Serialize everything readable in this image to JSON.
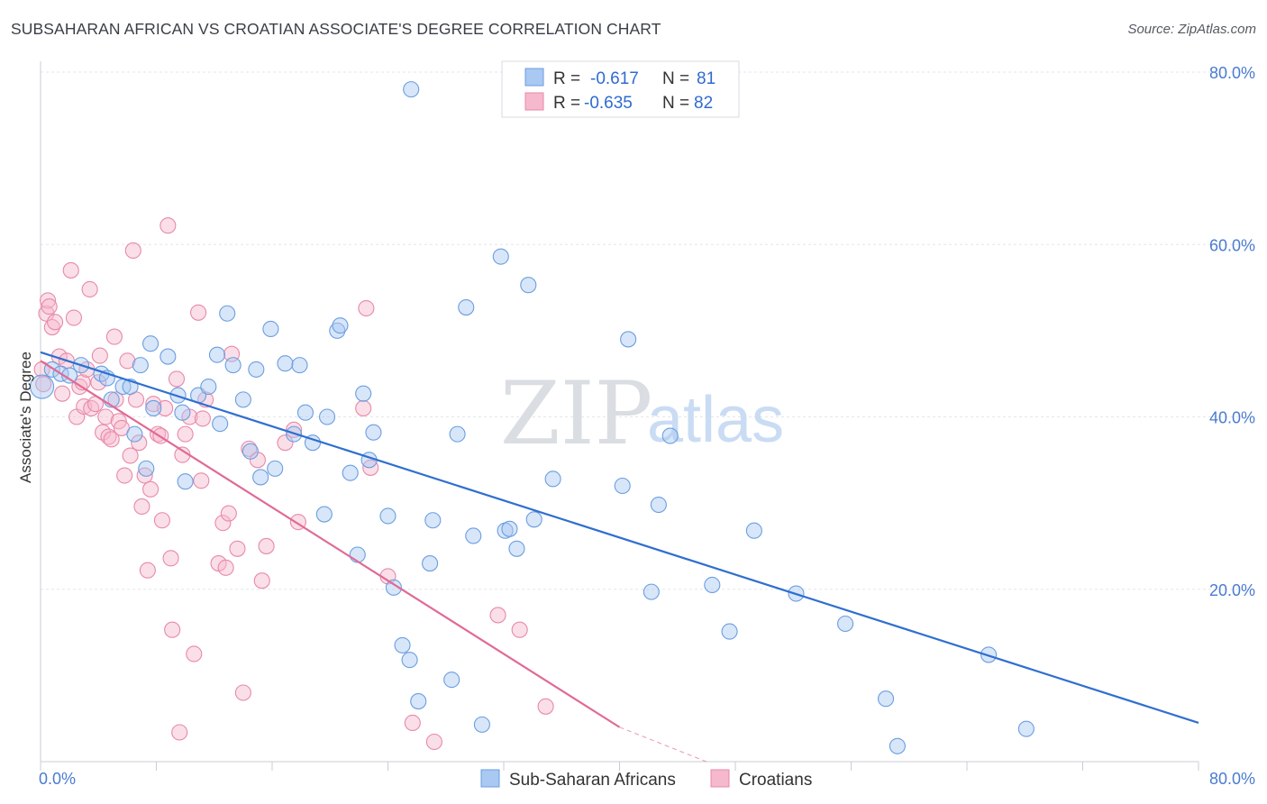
{
  "title": "SUBSAHARAN AFRICAN VS CROATIAN ASSOCIATE'S DEGREE CORRELATION CHART",
  "source": "Source: ZipAtlas.com",
  "watermark": {
    "zip": "ZIP",
    "atlas": "atlas"
  },
  "colors": {
    "blue_fill": "#a9c8f2",
    "blue_stroke": "#6a9ee0",
    "blue_line": "#2f6fcf",
    "pink_fill": "#f6b8cc",
    "pink_stroke": "#e889a8",
    "pink_line": "#e06a96",
    "tick_text": "#4a7bd0",
    "grid": "#e3e6ea"
  },
  "legend": {
    "rows": [
      {
        "r_label": "R =",
        "r_value": "-0.617",
        "n_label": "N =",
        "n_value": "81"
      },
      {
        "r_label": "R =",
        "r_value": "-0.635",
        "n_label": "N =",
        "n_value": "82"
      }
    ]
  },
  "bottom_legend": [
    "Sub-Saharan Africans",
    "Croatians"
  ],
  "chart_data": {
    "type": "scatter",
    "xlabel": "",
    "ylabel": "Associate's Degree",
    "xlim": [
      0,
      80
    ],
    "ylim": [
      0,
      80
    ],
    "x_tick_labels": [
      "0.0%",
      "80.0%"
    ],
    "y_tick_labels": [
      "20.0%",
      "40.0%",
      "60.0%",
      "80.0%"
    ],
    "y_ticks": [
      20,
      40,
      60,
      80
    ],
    "grid": true,
    "series": [
      {
        "name": "Sub-Saharan Africans",
        "r": -0.617,
        "n": 81,
        "trend": [
          [
            0,
            47.5
          ],
          [
            80,
            4.5
          ]
        ],
        "points": [
          [
            0.1,
            43.5
          ],
          [
            0.8,
            45.5
          ],
          [
            1.4,
            45
          ],
          [
            2.0,
            44.8
          ],
          [
            2.8,
            46
          ],
          [
            4.2,
            45
          ],
          [
            4.6,
            44.5
          ],
          [
            4.9,
            42
          ],
          [
            5.7,
            43.5
          ],
          [
            6.2,
            43.5
          ],
          [
            6.5,
            38
          ],
          [
            6.9,
            46
          ],
          [
            7.3,
            34
          ],
          [
            7.6,
            48.5
          ],
          [
            7.8,
            41
          ],
          [
            8.8,
            47
          ],
          [
            9.5,
            42.5
          ],
          [
            9.8,
            40.5
          ],
          [
            10,
            32.5
          ],
          [
            10.9,
            42.5
          ],
          [
            11.6,
            43.5
          ],
          [
            12.2,
            47.2
          ],
          [
            12.4,
            39.2
          ],
          [
            12.9,
            52
          ],
          [
            13.3,
            46
          ],
          [
            14,
            42
          ],
          [
            14.5,
            36
          ],
          [
            14.9,
            45.5
          ],
          [
            15.2,
            33
          ],
          [
            16.2,
            34
          ],
          [
            15.9,
            50.2
          ],
          [
            16.9,
            46.2
          ],
          [
            17.5,
            38
          ],
          [
            17.9,
            46
          ],
          [
            18.3,
            40.5
          ],
          [
            18.8,
            37
          ],
          [
            19.6,
            28.7
          ],
          [
            19.8,
            40
          ],
          [
            20.5,
            50
          ],
          [
            20.7,
            50.6
          ],
          [
            21.4,
            33.5
          ],
          [
            21.9,
            24
          ],
          [
            22.3,
            42.7
          ],
          [
            22.7,
            35
          ],
          [
            23,
            38.2
          ],
          [
            24,
            28.5
          ],
          [
            24.4,
            20.2
          ],
          [
            25,
            13.5
          ],
          [
            25.5,
            11.8
          ],
          [
            25.6,
            78
          ],
          [
            26.1,
            7
          ],
          [
            26.9,
            23
          ],
          [
            27.1,
            28
          ],
          [
            28.4,
            9.5
          ],
          [
            28.8,
            38
          ],
          [
            29.4,
            52.7
          ],
          [
            29.9,
            26.2
          ],
          [
            30.5,
            4.3
          ],
          [
            31.8,
            58.6
          ],
          [
            32.1,
            26.8
          ],
          [
            32.4,
            27
          ],
          [
            32.9,
            24.7
          ],
          [
            33.7,
            55.3
          ],
          [
            34.1,
            28.1
          ],
          [
            35.4,
            32.8
          ],
          [
            40.2,
            32
          ],
          [
            40.6,
            49
          ],
          [
            42.2,
            19.7
          ],
          [
            42.7,
            29.8
          ],
          [
            43.5,
            37.8
          ],
          [
            46.4,
            20.5
          ],
          [
            47.6,
            15.1
          ],
          [
            49.3,
            26.8
          ],
          [
            52.2,
            19.5
          ],
          [
            55.6,
            16
          ],
          [
            58.4,
            7.3
          ],
          [
            59.2,
            1.8
          ],
          [
            65.5,
            12.4
          ],
          [
            68.1,
            3.8
          ]
        ]
      },
      {
        "name": "Croatians",
        "r": -0.635,
        "n": 82,
        "trend": [
          [
            0,
            46.5
          ],
          [
            40,
            4
          ]
        ],
        "trend_dashed": [
          [
            40,
            4
          ],
          [
            46,
            -2.5
          ]
        ],
        "points": [
          [
            0.1,
            45.5
          ],
          [
            0.2,
            43.8
          ],
          [
            0.4,
            52
          ],
          [
            0.5,
            53.5
          ],
          [
            0.6,
            52.8
          ],
          [
            0.8,
            50.4
          ],
          [
            1.0,
            51
          ],
          [
            1.3,
            47
          ],
          [
            1.5,
            42.7
          ],
          [
            1.8,
            46.5
          ],
          [
            2.1,
            57
          ],
          [
            2.3,
            51.5
          ],
          [
            2.5,
            40
          ],
          [
            2.7,
            43.5
          ],
          [
            2.9,
            44
          ],
          [
            3.0,
            41.2
          ],
          [
            3.2,
            45.5
          ],
          [
            3.5,
            41
          ],
          [
            3.8,
            41.5
          ],
          [
            3.4,
            54.8
          ],
          [
            4,
            44
          ],
          [
            4.1,
            47.1
          ],
          [
            4.3,
            38.2
          ],
          [
            4.5,
            40
          ],
          [
            4.7,
            37.7
          ],
          [
            4.9,
            37.4
          ],
          [
            5.1,
            49.3
          ],
          [
            5.2,
            42
          ],
          [
            5.4,
            39.5
          ],
          [
            5.6,
            38.7
          ],
          [
            5.8,
            33.2
          ],
          [
            6.0,
            46.5
          ],
          [
            6.2,
            35.5
          ],
          [
            6.4,
            59.3
          ],
          [
            6.6,
            42
          ],
          [
            6.8,
            37
          ],
          [
            7.0,
            29.6
          ],
          [
            7.2,
            33.2
          ],
          [
            7.4,
            22.2
          ],
          [
            7.6,
            31.6
          ],
          [
            7.8,
            41.5
          ],
          [
            8.1,
            38
          ],
          [
            8.3,
            37.8
          ],
          [
            8.4,
            28
          ],
          [
            8.6,
            41
          ],
          [
            8.8,
            62.2
          ],
          [
            9,
            23.6
          ],
          [
            9.1,
            15.3
          ],
          [
            9.4,
            44.4
          ],
          [
            9.6,
            3.4
          ],
          [
            9.8,
            35.6
          ],
          [
            10,
            38
          ],
          [
            10.3,
            40
          ],
          [
            10.6,
            12.5
          ],
          [
            10.9,
            52.1
          ],
          [
            11.1,
            32.6
          ],
          [
            11.2,
            39.8
          ],
          [
            11.4,
            42
          ],
          [
            12.3,
            23
          ],
          [
            12.6,
            27.7
          ],
          [
            12.8,
            22.5
          ],
          [
            13.0,
            28.8
          ],
          [
            13.2,
            47.3
          ],
          [
            13.6,
            24.7
          ],
          [
            14,
            8
          ],
          [
            14.4,
            36.3
          ],
          [
            15.0,
            35
          ],
          [
            15.3,
            21
          ],
          [
            15.6,
            25
          ],
          [
            16.9,
            37
          ],
          [
            17.5,
            38.5
          ],
          [
            17.8,
            27.8
          ],
          [
            22.3,
            41
          ],
          [
            22.5,
            52.6
          ],
          [
            22.8,
            34.1
          ],
          [
            24,
            21.5
          ],
          [
            25.7,
            4.5
          ],
          [
            27.2,
            2.3
          ],
          [
            31.6,
            17
          ],
          [
            33.1,
            15.3
          ],
          [
            34.9,
            6.4
          ]
        ]
      }
    ]
  }
}
